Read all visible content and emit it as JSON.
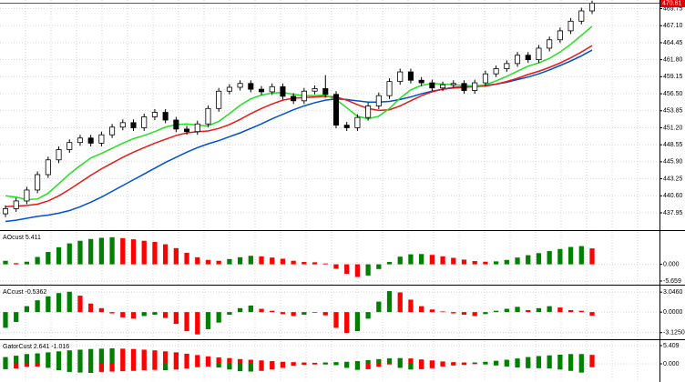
{
  "chart_data": [
    {
      "type": "candlestick",
      "ylim": [
        435.4,
        471.1
      ],
      "yticks": [
        437.95,
        {
          "value": 440.6,
          "label": "440.60"
        },
        443.25,
        {
          "value": 445.9,
          "label": "445.90"
        },
        448.55,
        {
          "value": 451.2,
          "label": "451.20"
        },
        453.85,
        {
          "value": 456.5,
          "label": "456.50"
        },
        459.15,
        {
          "value": 461.8,
          "label": "461.80"
        },
        464.45,
        {
          "value": 467.1,
          "label": "467.10"
        },
        469.75
      ],
      "current_price": 470.61,
      "grid": true,
      "up_color": "#ffffff",
      "down_color": "#000000",
      "open": [
        437.8,
        438.6,
        439.8,
        441.5,
        443.9,
        446.2,
        447.8,
        448.9,
        449.6,
        448.8,
        450.1,
        451.3,
        452.0,
        451.2,
        452.9,
        453.6,
        452.4,
        451.0,
        450.6,
        451.8,
        454.2,
        456.9,
        457.5,
        458.1,
        457.2,
        456.8,
        457.6,
        456.1,
        455.4,
        456.9,
        457.3,
        456.4,
        451.6,
        451.2,
        452.8,
        454.6,
        456.2,
        458.4,
        459.9,
        458.6,
        458.2,
        457.4,
        457.9,
        458.1,
        457.0,
        458.2,
        459.6,
        460.4,
        461.2,
        462.5,
        461.8,
        463.6,
        464.9,
        466.3,
        467.8,
        469.4
      ],
      "high": [
        439.1,
        440.3,
        442.0,
        444.4,
        446.7,
        448.3,
        449.4,
        450.1,
        450.1,
        450.6,
        451.8,
        452.5,
        452.5,
        453.4,
        454.1,
        454.1,
        452.9,
        451.5,
        452.3,
        454.7,
        457.4,
        458.0,
        458.6,
        458.6,
        457.7,
        458.1,
        458.1,
        456.6,
        457.4,
        457.8,
        459.4,
        456.9,
        452.1,
        453.3,
        455.1,
        456.7,
        458.9,
        460.4,
        460.4,
        459.1,
        458.7,
        458.4,
        458.6,
        458.6,
        458.7,
        460.1,
        460.9,
        461.7,
        463.0,
        463.0,
        464.1,
        465.4,
        466.8,
        468.3,
        469.9,
        471.0
      ],
      "low": [
        437.3,
        438.1,
        439.3,
        441.0,
        443.4,
        445.7,
        447.3,
        448.4,
        448.3,
        448.3,
        449.6,
        450.8,
        450.7,
        450.7,
        452.4,
        451.9,
        450.5,
        450.1,
        450.1,
        451.3,
        453.7,
        456.4,
        457.0,
        456.7,
        456.3,
        456.3,
        455.6,
        454.9,
        454.9,
        456.4,
        455.9,
        451.1,
        450.7,
        450.7,
        452.3,
        454.1,
        455.7,
        457.9,
        458.1,
        457.7,
        456.9,
        456.9,
        457.4,
        456.5,
        456.5,
        457.7,
        459.1,
        459.9,
        460.7,
        461.3,
        461.3,
        463.1,
        464.4,
        465.8,
        467.3,
        468.9
      ],
      "close": [
        438.6,
        439.8,
        441.5,
        443.9,
        446.2,
        447.8,
        448.9,
        449.6,
        448.8,
        450.1,
        451.3,
        452.0,
        451.2,
        452.9,
        453.6,
        452.4,
        451.0,
        450.6,
        451.8,
        454.2,
        456.9,
        457.5,
        458.1,
        457.2,
        456.8,
        457.6,
        456.1,
        455.4,
        456.9,
        457.3,
        456.4,
        451.6,
        451.2,
        452.8,
        454.6,
        456.2,
        458.4,
        459.9,
        458.6,
        458.2,
        457.4,
        457.9,
        458.1,
        457.0,
        458.2,
        459.6,
        460.4,
        461.2,
        462.5,
        461.8,
        463.6,
        464.9,
        466.3,
        467.8,
        469.4,
        470.6
      ],
      "lines": [
        {
          "color": "#0050d0",
          "values": [
            436.6,
            436.8,
            437.1,
            437.4,
            437.6,
            437.9,
            438.3,
            438.9,
            439.6,
            440.4,
            441.3,
            442.2,
            443.1,
            444.0,
            444.9,
            445.8,
            446.6,
            447.4,
            448.1,
            448.7,
            449.2,
            449.8,
            450.4,
            451.1,
            451.8,
            452.6,
            453.3,
            454.0,
            454.6,
            455.1,
            455.5,
            455.7,
            455.6,
            455.4,
            455.2,
            455.2,
            455.3,
            455.6,
            456.0,
            456.5,
            456.9,
            457.2,
            457.5,
            457.6,
            457.7,
            457.8,
            458.0,
            458.3,
            458.7,
            459.1,
            459.6,
            460.2,
            460.9,
            461.6,
            462.4,
            463.3
          ]
        },
        {
          "color": "#e81818",
          "values": [
            438.9,
            439.0,
            439.1,
            439.3,
            439.8,
            440.6,
            441.6,
            442.7,
            443.8,
            444.8,
            445.7,
            446.6,
            447.4,
            448.1,
            448.8,
            449.4,
            450.0,
            450.4,
            450.6,
            450.7,
            451.1,
            451.7,
            452.5,
            453.4,
            454.2,
            454.9,
            455.5,
            455.8,
            455.9,
            456.0,
            456.1,
            456.0,
            455.5,
            454.8,
            454.2,
            453.9,
            454.0,
            454.6,
            455.4,
            456.2,
            456.8,
            457.2,
            457.4,
            457.5,
            457.6,
            457.7,
            458.0,
            458.4,
            458.9,
            459.5,
            460.0,
            460.6,
            461.3,
            462.1,
            463.0,
            464.0
          ]
        },
        {
          "color": "#22e022",
          "values": [
            440.6,
            440.4,
            440.0,
            440.1,
            441.0,
            442.5,
            444.0,
            445.3,
            446.5,
            447.2,
            448.0,
            448.8,
            449.5,
            450.0,
            450.6,
            451.3,
            451.7,
            451.8,
            451.6,
            451.5,
            452.2,
            453.4,
            454.7,
            455.7,
            456.3,
            456.6,
            456.7,
            456.4,
            456.2,
            456.2,
            456.3,
            455.6,
            454.3,
            453.0,
            452.6,
            453.0,
            454.2,
            455.8,
            457.1,
            457.8,
            458.1,
            458.0,
            457.9,
            457.8,
            457.7,
            457.9,
            458.5,
            459.2,
            460.0,
            460.8,
            461.3,
            462.0,
            463.0,
            464.2,
            465.6,
            467.0
          ]
        }
      ]
    },
    {
      "type": "oscillator",
      "title": "AOcust 5.411",
      "ylim": [
        -6.6,
        11
      ],
      "yticks": [
        {
          "value": 0,
          "label": "0.000"
        },
        -5.659
      ],
      "up_color": "#008000",
      "down_color": "#ff0000",
      "values": [
        1.2,
        0.4,
        0.9,
        2.5,
        4.2,
        5.8,
        7.1,
        8.0,
        8.6,
        9.0,
        9.2,
        8.9,
        8.5,
        8.0,
        7.6,
        6.8,
        5.5,
        3.9,
        2.4,
        1.5,
        1.2,
        1.8,
        2.4,
        2.9,
        2.7,
        2.3,
        1.9,
        1.2,
        0.8,
        0.7,
        0.3,
        -1.5,
        -3.2,
        -4.3,
        -3.8,
        -1.6,
        0.8,
        2.6,
        3.4,
        3.5,
        3.2,
        2.7,
        2.2,
        1.6,
        1.1,
        0.9,
        1.0,
        1.5,
        2.3,
        3.1,
        3.8,
        4.5,
        5.2,
        5.9,
        6.2,
        5.411
      ]
    },
    {
      "type": "oscillator",
      "title": "ACcust -0.5362",
      "ylim": [
        -4.0,
        3.9
      ],
      "yticks": [
        {
          "value": 3.046,
          "label": "3.0460"
        },
        {
          "value": 0,
          "label": "0.0000"
        },
        {
          "value": -3.125,
          "label": "-3.1250"
        }
      ],
      "up_color": "#008000",
      "down_color": "#ff0000",
      "values": [
        -2.4,
        -1.5,
        0.9,
        1.8,
        2.4,
        2.9,
        3.1,
        2.5,
        1.3,
        0.6,
        -0.2,
        -0.8,
        -1.0,
        -0.6,
        -0.4,
        -0.9,
        -1.8,
        -2.9,
        -3.4,
        -2.6,
        -1.6,
        -0.4,
        0.6,
        1.0,
        0.5,
        0.2,
        -0.3,
        -0.6,
        -0.4,
        -0.1,
        -0.5,
        -2.4,
        -3.2,
        -2.9,
        -1.0,
        1.6,
        3.2,
        3.0,
        1.9,
        0.9,
        0.4,
        0.1,
        -0.2,
        -0.4,
        -0.6,
        -0.3,
        0.2,
        0.5,
        0.8,
        0.3,
        0.6,
        0.9,
        0.7,
        0.3,
        0.2,
        -0.5362
      ]
    },
    {
      "type": "gator",
      "title": "GatorCust 2.641 -1.016",
      "ylim": [
        -5.4,
        6.75
      ],
      "yticks": [
        5.409,
        {
          "value": 0,
          "label": "0.000"
        }
      ],
      "up_color": "#008000",
      "down_color": "#ff0000",
      "upper": [
        2.0,
        2.4,
        2.9,
        3.1,
        3.4,
        3.7,
        4.0,
        4.2,
        4.4,
        4.5,
        4.6,
        4.5,
        4.4,
        4.2,
        4.0,
        3.7,
        3.4,
        3.0,
        2.6,
        2.2,
        1.9,
        1.7,
        1.4,
        1.2,
        1.0,
        0.8,
        0.6,
        0.5,
        0.4,
        0.3,
        0.4,
        0.5,
        0.6,
        0.8,
        1.1,
        1.4,
        1.6,
        1.7,
        1.6,
        1.3,
        1.0,
        0.7,
        0.5,
        0.4,
        0.4,
        0.6,
        0.9,
        1.2,
        1.6,
        2.0,
        2.3,
        2.5,
        2.7,
        2.9,
        2.9,
        2.641
      ],
      "lower": [
        -1.6,
        -1.4,
        -0.9,
        -0.8,
        -1.2,
        -1.9,
        -2.4,
        -2.6,
        -2.7,
        -2.4,
        -2.3,
        -2.2,
        -2.1,
        -1.9,
        -1.8,
        -1.9,
        -1.7,
        -1.4,
        -1.0,
        -0.8,
        -1.1,
        -1.7,
        -2.2,
        -2.3,
        -2.1,
        -1.7,
        -1.2,
        -0.6,
        -0.3,
        -0.2,
        -0.2,
        -0.4,
        -1.2,
        -1.8,
        -1.6,
        -0.9,
        -0.2,
        -1.2,
        -1.7,
        -1.6,
        -1.3,
        -0.8,
        -0.5,
        -0.3,
        -0.1,
        -0.2,
        -0.5,
        -0.8,
        -1.1,
        -1.3,
        -1.3,
        -1.4,
        -1.7,
        -2.1,
        -2.6,
        -1.016
      ]
    }
  ]
}
